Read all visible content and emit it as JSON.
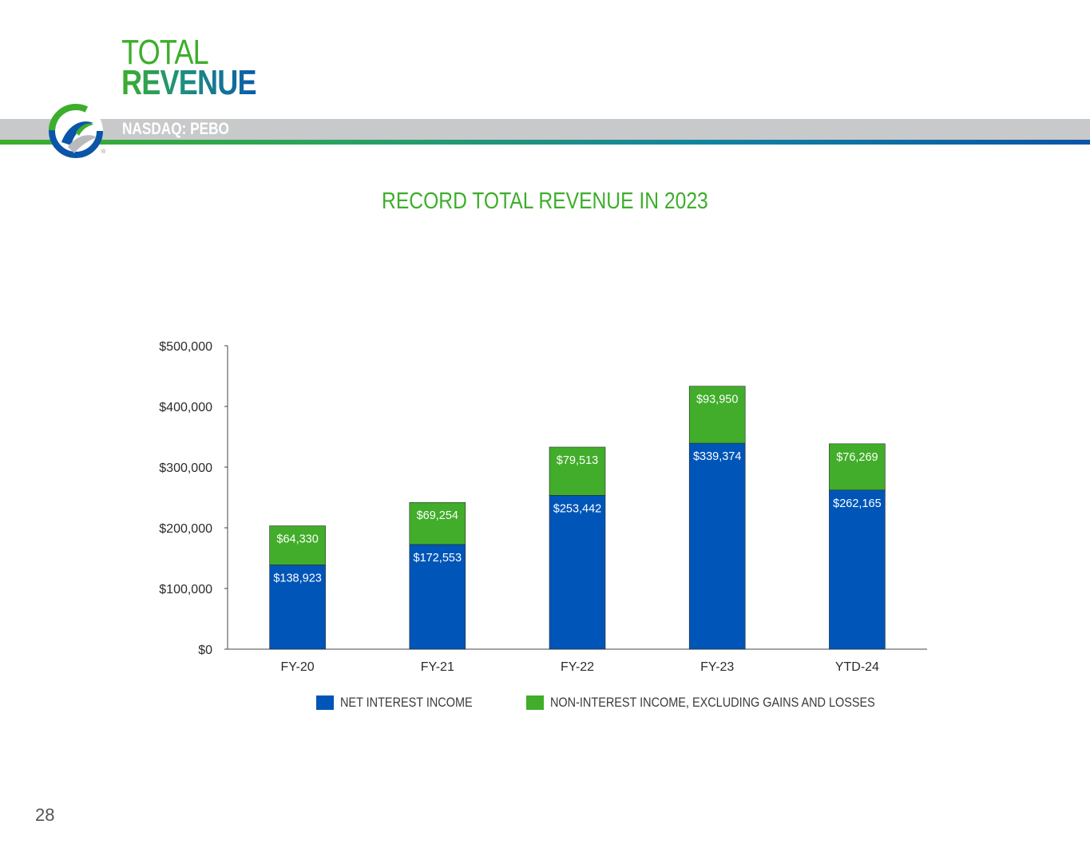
{
  "header": {
    "title_line1": "TOTAL",
    "title_line2": "REVENUE",
    "ticker": "NASDAQ: PEBO"
  },
  "page_number": "28",
  "colors": {
    "net_interest": "#0055b8",
    "non_interest": "#41ad2a",
    "heading_green": "#3dae2b"
  },
  "chart_data": {
    "type": "bar",
    "stacked": true,
    "title": "RECORD TOTAL REVENUE IN 2023",
    "categories": [
      "FY-20",
      "FY-21",
      "FY-22",
      "FY-23",
      "YTD-24"
    ],
    "series": [
      {
        "name": "NET INTEREST INCOME",
        "values": [
          138923,
          172553,
          253442,
          339374,
          262165
        ],
        "labels": [
          "$138,923",
          "$172,553",
          "$253,442",
          "$339,374",
          "$262,165"
        ]
      },
      {
        "name": "NON-INTEREST INCOME, EXCLUDING GAINS AND LOSSES",
        "values": [
          64330,
          69254,
          79513,
          93950,
          76269
        ],
        "labels": [
          "$64,330",
          "$69,254",
          "$79,513",
          "$93,950",
          "$76,269"
        ]
      }
    ],
    "ylim": [
      0,
      500000
    ],
    "yticks": [
      "$0",
      "$100,000",
      "$200,000",
      "$300,000",
      "$400,000",
      "$500,000"
    ],
    "legend_position": "bottom",
    "grid": false
  }
}
